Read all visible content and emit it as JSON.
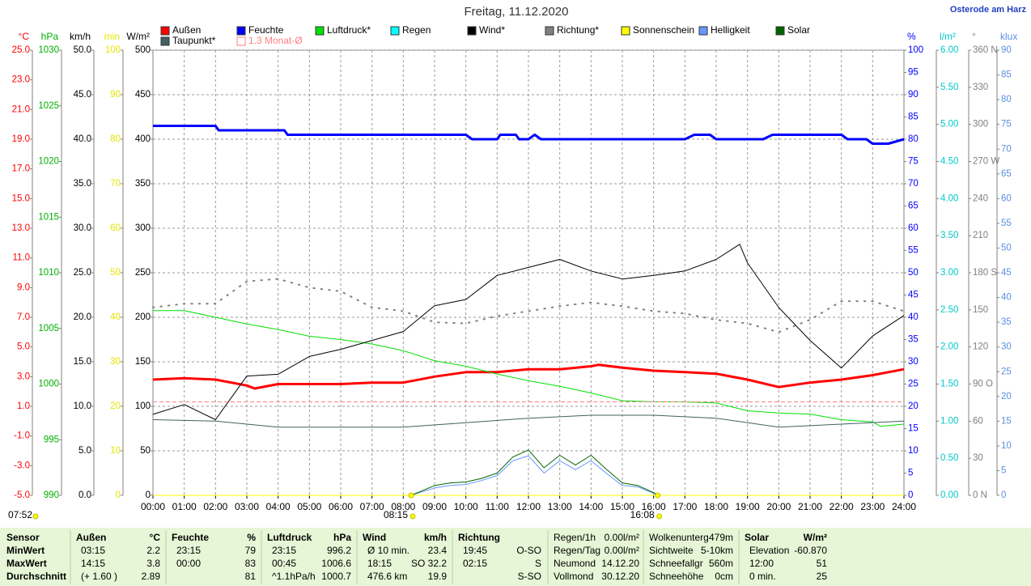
{
  "station": "Osterode am Harz",
  "chart_data": {
    "type": "line",
    "title": "Freitag, 11.12.2020",
    "xlim": [
      0,
      24
    ],
    "xticks": [
      {
        "value": 0,
        "label": "00:00"
      },
      {
        "value": 1,
        "label": "01:00"
      },
      {
        "value": 2,
        "label": "02:00"
      },
      {
        "value": 3,
        "label": "03:00"
      },
      {
        "value": 4,
        "label": "04:00"
      },
      {
        "value": 5,
        "label": "05:00"
      },
      {
        "value": 6,
        "label": "06:00"
      },
      {
        "value": 7,
        "label": "07:00"
      },
      {
        "value": 8,
        "label": "08:00"
      },
      {
        "value": 9,
        "label": "09:00"
      },
      {
        "value": 10,
        "label": "10:00"
      },
      {
        "value": 11,
        "label": "11:00"
      },
      {
        "value": 12,
        "label": "12:00"
      },
      {
        "value": 13,
        "label": "13:00"
      },
      {
        "value": 14,
        "label": "14:00"
      },
      {
        "value": 15,
        "label": "15:00"
      },
      {
        "value": 16,
        "label": "16:00"
      },
      {
        "value": 17,
        "label": "17:00"
      },
      {
        "value": 18,
        "label": "18:00"
      },
      {
        "value": 19,
        "label": "19:00"
      },
      {
        "value": 20,
        "label": "20:00"
      },
      {
        "value": 21,
        "label": "21:00"
      },
      {
        "value": 22,
        "label": "22:00"
      },
      {
        "value": 23,
        "label": "23:00"
      },
      {
        "value": 24,
        "label": "24:00"
      }
    ],
    "grid": true,
    "axes": [
      {
        "unit": "°C",
        "color": "#ff0000",
        "lim": [
          -5,
          25
        ],
        "ticks": [
          {
            "value": 25,
            "label": "25.0"
          },
          {
            "value": 23,
            "label": "23.0"
          },
          {
            "value": 21,
            "label": "21.0"
          },
          {
            "value": 19,
            "label": "19.0"
          },
          {
            "value": 17,
            "label": "17.0"
          },
          {
            "value": 15,
            "label": "15.0"
          },
          {
            "value": 13,
            "label": "13.0"
          },
          {
            "value": 11,
            "label": "11.0"
          },
          {
            "value": 9,
            "label": "9.0"
          },
          {
            "value": 7,
            "label": "7.0"
          },
          {
            "value": 5,
            "label": "5.0"
          },
          {
            "value": 3,
            "label": "3.0"
          },
          {
            "value": 1,
            "label": "1.0"
          },
          {
            "value": -1,
            "label": "-1.0"
          },
          {
            "value": -3,
            "label": "-3.0"
          },
          {
            "value": -5,
            "label": "-5.0"
          }
        ]
      },
      {
        "unit": "hPa",
        "color": "#00b000",
        "lim": [
          990,
          1030
        ],
        "ticks": [
          1030,
          1025,
          1020,
          1015,
          1010,
          1005,
          1000,
          995,
          990
        ]
      },
      {
        "unit": "km/h",
        "color": "#000000",
        "lim": [
          0,
          50
        ],
        "ticks": [
          {
            "value": 50,
            "label": "50.0"
          },
          {
            "value": 45,
            "label": "45.0"
          },
          {
            "value": 40,
            "label": "40.0"
          },
          {
            "value": 35,
            "label": "35.0"
          },
          {
            "value": 30,
            "label": "30.0"
          },
          {
            "value": 25,
            "label": "25.0"
          },
          {
            "value": 20,
            "label": "20.0"
          },
          {
            "value": 15,
            "label": "15.0"
          },
          {
            "value": 10,
            "label": "10.0"
          },
          {
            "value": 5,
            "label": "5.0"
          },
          {
            "value": 0,
            "label": "0.0"
          }
        ]
      },
      {
        "unit": "min",
        "color": "#e6e600",
        "lim": [
          0,
          100
        ],
        "ticks": [
          100,
          90,
          80,
          70,
          60,
          50,
          40,
          30,
          20,
          10,
          0
        ]
      },
      {
        "unit": "W/m²",
        "color": "#000000",
        "lim": [
          0,
          500
        ],
        "ticks": [
          500,
          450,
          400,
          350,
          300,
          250,
          200,
          150,
          100,
          50,
          0
        ],
        "grid": true
      },
      {
        "unit": "%",
        "color": "#0000ff",
        "lim": [
          0,
          100
        ],
        "ticks": [
          100,
          95,
          90,
          85,
          80,
          75,
          70,
          65,
          60,
          55,
          50,
          45,
          40,
          35,
          30,
          25,
          20,
          15,
          10,
          5,
          0
        ]
      },
      {
        "unit": "l/m²",
        "color": "#00c8c8",
        "lim": [
          0,
          6
        ],
        "ticks": [
          {
            "value": 6,
            "label": "6.00"
          },
          {
            "value": 5.5,
            "label": "5.50"
          },
          {
            "value": 5,
            "label": "5.00"
          },
          {
            "value": 4.5,
            "label": "4.50"
          },
          {
            "value": 4,
            "label": "4.00"
          },
          {
            "value": 3.5,
            "label": "3.50"
          },
          {
            "value": 3,
            "label": "3.00"
          },
          {
            "value": 2.5,
            "label": "2.50"
          },
          {
            "value": 2,
            "label": "2.00"
          },
          {
            "value": 1.5,
            "label": "1.50"
          },
          {
            "value": 1,
            "label": "1.00"
          },
          {
            "value": 0.5,
            "label": "0.50"
          },
          {
            "value": 0,
            "label": "0.00"
          }
        ]
      },
      {
        "unit": "°",
        "color": "#808080",
        "lim": [
          0,
          360
        ],
        "ticks": [
          {
            "value": 360,
            "label": "360 N"
          },
          330,
          300,
          {
            "value": 270,
            "label": "270 W"
          },
          240,
          210,
          {
            "value": 180,
            "label": "180 S"
          },
          150,
          120,
          {
            "value": 90,
            "label": "90 O"
          },
          60,
          30,
          {
            "value": 0,
            "label": "0 N"
          }
        ]
      },
      {
        "unit": "klux",
        "color": "#5a8fe0",
        "lim": [
          0,
          90
        ],
        "ticks": [
          90,
          85,
          80,
          75,
          70,
          65,
          60,
          55,
          50,
          45,
          40,
          35,
          30,
          25,
          20,
          15,
          10,
          5,
          0
        ]
      }
    ],
    "series": [
      {
        "name": "Außen",
        "color": "#ff0000",
        "axis": 0,
        "width": 3,
        "x": [
          0,
          1,
          2,
          3,
          3.25,
          4,
          5,
          6,
          7,
          8,
          9,
          10,
          11,
          12,
          13,
          14,
          14.25,
          15,
          16,
          17,
          18,
          19,
          20,
          21,
          22,
          23,
          24
        ],
        "values": [
          2.8,
          2.9,
          2.8,
          2.4,
          2.2,
          2.5,
          2.5,
          2.5,
          2.6,
          2.6,
          3.0,
          3.3,
          3.3,
          3.5,
          3.5,
          3.7,
          3.8,
          3.6,
          3.4,
          3.3,
          3.2,
          2.8,
          2.3,
          2.6,
          2.8,
          3.1,
          3.5
        ]
      },
      {
        "name": "Feuchte",
        "color": "#0000ff",
        "axis": 5,
        "width": 3,
        "x": [
          0,
          2,
          2.1,
          4.2,
          4.3,
          10,
          10.2,
          11,
          11.1,
          11.6,
          11.7,
          12,
          12.2,
          12.4,
          17,
          17.3,
          17.8,
          18,
          19.5,
          19.8,
          22,
          22.2,
          22.8,
          23,
          23.5,
          24
        ],
        "values": [
          83,
          83,
          82,
          82,
          81,
          81,
          80,
          80,
          81,
          81,
          80,
          80,
          81,
          80,
          80,
          81,
          81,
          80,
          80,
          81,
          81,
          80,
          80,
          79,
          79,
          80
        ]
      },
      {
        "name": "Luftdruck*",
        "color": "#00e000",
        "axis": 1,
        "width": 1,
        "x": [
          0,
          1,
          2,
          3,
          4,
          5,
          6,
          7,
          8,
          9,
          10,
          11,
          12,
          13,
          14,
          15,
          16,
          17,
          18,
          19,
          20,
          21,
          22,
          23,
          23.25,
          24
        ],
        "values": [
          1006.6,
          1006.6,
          1006.0,
          1005.4,
          1004.9,
          1004.3,
          1004.0,
          1003.6,
          1003.0,
          1002.1,
          1001.6,
          1000.9,
          1000.3,
          999.8,
          999.2,
          998.5,
          998.4,
          998.4,
          998.3,
          997.6,
          997.4,
          997.3,
          996.8,
          996.6,
          996.2,
          996.4
        ]
      },
      {
        "name": "Regen",
        "color": "#00ffff",
        "axis": 6,
        "width": 1,
        "x": [
          0,
          24
        ],
        "values": [
          0,
          0
        ]
      },
      {
        "name": "Wind*",
        "color": "#000000",
        "axis": 2,
        "width": 1,
        "x": [
          0,
          1,
          2,
          3,
          4,
          5,
          6,
          7,
          8,
          9,
          10,
          11,
          12,
          13,
          14,
          15,
          16,
          17,
          18,
          18.75,
          19,
          20,
          21,
          22,
          23,
          24
        ],
        "values": [
          9.1,
          10.2,
          8.5,
          13.4,
          13.6,
          15.6,
          16.4,
          17.4,
          18.4,
          21.3,
          22.0,
          24.7,
          25.6,
          26.5,
          25.2,
          24.3,
          24.7,
          25.2,
          26.5,
          28.2,
          26.1,
          21.1,
          17.4,
          14.3,
          17.9,
          20.2
        ]
      },
      {
        "name": "Richtung*",
        "color": "#808080",
        "axis": 7,
        "width": 2,
        "style": "dotted",
        "x": [
          0,
          1,
          2,
          3,
          4,
          5,
          6,
          7,
          8,
          9,
          10,
          11,
          12,
          13,
          14,
          15,
          16,
          17,
          18,
          19,
          20,
          21,
          22,
          23,
          24
        ],
        "values": [
          152,
          155,
          155,
          173,
          175,
          168,
          165,
          152,
          149,
          140,
          139,
          145,
          149,
          153,
          156,
          153,
          149,
          147,
          142,
          139,
          132,
          142,
          157,
          157,
          149
        ]
      },
      {
        "name": "Sonnenschein",
        "color": "#ffff00",
        "axis": 3,
        "width": 1,
        "x": [
          0,
          24
        ],
        "values": [
          0,
          0
        ]
      },
      {
        "name": "Helligkeit",
        "color": "#6699ff",
        "axis": 8,
        "width": 1,
        "x": [
          8.25,
          9,
          9.5,
          10,
          10.5,
          11,
          11.5,
          12,
          12.5,
          13,
          13.5,
          14,
          14.5,
          15,
          15.5,
          16,
          16.13
        ],
        "values": [
          0,
          1.5,
          2,
          2.2,
          3,
          4,
          7,
          8,
          4.5,
          7,
          5.2,
          7,
          4.4,
          2,
          1.7,
          0.4,
          0
        ]
      },
      {
        "name": "Solar",
        "color": "#006400",
        "axis": 4,
        "width": 1,
        "x": [
          8.25,
          9,
          9.5,
          10,
          10.5,
          11,
          11.5,
          12,
          12.5,
          13,
          13.5,
          14,
          14.5,
          15,
          15.5,
          16,
          16.13
        ],
        "values": [
          0,
          11,
          14,
          15,
          19,
          25,
          43,
          51,
          31,
          45,
          34,
          45,
          29,
          14,
          11,
          3,
          0
        ]
      },
      {
        "name": "Taupunkt*",
        "color": "#406060",
        "axis": 0,
        "width": 1,
        "x": [
          0,
          2,
          4,
          6,
          8,
          10,
          12,
          14,
          16,
          18,
          20,
          22,
          24
        ],
        "values": [
          0.1,
          0.0,
          -0.4,
          -0.4,
          -0.4,
          -0.1,
          0.2,
          0.4,
          0.4,
          0.2,
          -0.4,
          -0.2,
          0.0
        ]
      },
      {
        "name": "1.3 Monat-Ø",
        "color": "#ff8080",
        "axis": 0,
        "width": 1,
        "style": "dashed",
        "hollow": true,
        "x": [
          0,
          24
        ],
        "values": [
          1.3,
          1.3
        ]
      }
    ],
    "first_light": "07:52",
    "annotations": [
      {
        "text": "08:15",
        "x": 8.25
      },
      {
        "text": "16:08",
        "x": 16.13
      }
    ]
  },
  "summary": {
    "row_labels": {
      "header": "Sensor",
      "rows": [
        "MinWert",
        "MaxWert",
        "Durchschnitt"
      ]
    },
    "blocks": [
      {
        "title": "Außen",
        "unit": "°C",
        "rows": [
          {
            "left": "03:15",
            "right": "2.2"
          },
          {
            "left": "14:15",
            "right": "3.8"
          },
          {
            "left": "(+ 1.60 )",
            "right": "2.89"
          }
        ]
      },
      {
        "title": "Feuchte",
        "unit": "%",
        "rows": [
          {
            "left": "23:15",
            "right": "79"
          },
          {
            "left": "00:00",
            "right": "83"
          },
          {
            "right": "81"
          }
        ]
      },
      {
        "title": "Luftdruck",
        "unit": "hPa",
        "rows": [
          {
            "left": "23:15",
            "right": "996.2"
          },
          {
            "left": "00:45",
            "right": "1006.6"
          },
          {
            "left": "^1.1hPa/h",
            "right": "1000.7"
          }
        ]
      },
      {
        "title": "Wind",
        "unit": "km/h",
        "rows": [
          {
            "left": "Ø 10 min.",
            "right": "23.4"
          },
          {
            "left": "18:15",
            "right": "SO 32.2"
          },
          {
            "left": "476.6 km",
            "right": "19.9"
          }
        ]
      },
      {
        "title": "Richtung",
        "rows": [
          {
            "left": "19:45",
            "right": "O-SO"
          },
          {
            "left": "02:15",
            "right": "S"
          },
          {
            "right": "S-SO"
          }
        ]
      },
      {
        "rows": [
          {
            "left": "Regen/1h",
            "right": "0.00l/m²"
          },
          {
            "left": "Regen/Tag",
            "right": "0.00l/m²"
          },
          {
            "left": "Neumond",
            "right": "14.12.20"
          },
          {
            "left": "Vollmond",
            "right": "30.12.20"
          }
        ]
      },
      {
        "rows": [
          {
            "left": "Wolkenunterg",
            "right": "479m"
          },
          {
            "left": "Sichtweite",
            "right": "5-10km"
          },
          {
            "left": "Schneefallgr",
            "right": "560m"
          },
          {
            "left": "Schneehöhe",
            "right": "0cm"
          }
        ]
      },
      {
        "title": "Solar",
        "unit": "W/m²",
        "rows": [
          {
            "left": "Elevation",
            "right": "-60.870"
          },
          {
            "left": "12:00",
            "right": "51"
          },
          {
            "left": "0 min.",
            "right": "25"
          }
        ]
      }
    ]
  }
}
